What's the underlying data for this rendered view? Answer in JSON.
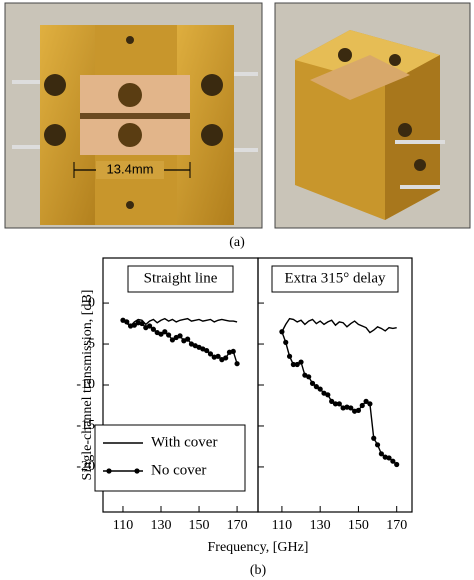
{
  "figure_a": {
    "annotation": "13.4mm",
    "label": "(a)"
  },
  "figure_b": {
    "y_label": "Single-channel transmission, [dB]",
    "x_label": "Frequency, [GHz]",
    "label": "(b)"
  },
  "chart_data": [
    {
      "type": "line",
      "title": "Straight line",
      "x": [
        110,
        112,
        114,
        116,
        118,
        120,
        122,
        124,
        126,
        128,
        130,
        132,
        134,
        136,
        138,
        140,
        142,
        144,
        146,
        148,
        150,
        152,
        154,
        156,
        158,
        160,
        162,
        164,
        166,
        168,
        170
      ],
      "xlim": [
        99.5,
        181
      ],
      "xticks": [
        110,
        130,
        150,
        170
      ],
      "ylim": [
        -25.5,
        5.5
      ],
      "yticks": [
        0,
        -5,
        -10,
        -15,
        -20
      ],
      "legend": "lower left",
      "series": [
        {
          "name": "With cover",
          "color": "#000000",
          "marker": "none",
          "values": [
            -2.0,
            -2.5,
            -2.8,
            -2.3,
            -2.0,
            -2.1,
            -2.6,
            -2.2,
            -2.0,
            -2.4,
            -2.1,
            -1.9,
            -2.2,
            -2.0,
            -2.3,
            -2.1,
            -2.0,
            -1.9,
            -2.2,
            -2.1,
            -2.0,
            -2.2,
            -2.1,
            -2.0,
            -2.3,
            -2.1,
            -2.0,
            -2.1,
            -2.2,
            -2.2,
            -2.3
          ]
        },
        {
          "name": "No cover",
          "color": "#000000",
          "marker": "circle",
          "values": [
            -2.1,
            -2.3,
            -2.8,
            -2.7,
            -2.4,
            -2.5,
            -3.0,
            -2.8,
            -3.2,
            -3.6,
            -3.8,
            -3.5,
            -3.9,
            -4.5,
            -4.2,
            -4.0,
            -4.6,
            -4.4,
            -5.0,
            -5.2,
            -5.4,
            -5.6,
            -5.8,
            -6.2,
            -6.6,
            -6.5,
            -6.9,
            -6.7,
            -6.0,
            -5.9,
            -7.4
          ]
        }
      ]
    },
    {
      "type": "line",
      "title": "Extra 315° delay",
      "x": [
        110,
        112,
        114,
        116,
        118,
        120,
        122,
        124,
        126,
        128,
        130,
        132,
        134,
        136,
        138,
        140,
        142,
        144,
        146,
        148,
        150,
        152,
        154,
        156,
        158,
        160,
        162,
        164,
        166,
        168,
        170
      ],
      "xlim": [
        97.5,
        178
      ],
      "xticks": [
        110,
        130,
        150,
        170
      ],
      "ylim": [
        -25.5,
        5.5
      ],
      "yticks": [
        0,
        -5,
        -10,
        -15,
        -20
      ],
      "series": [
        {
          "color": "#000000",
          "marker": "none",
          "values": [
            -3.5,
            -2.6,
            -1.9,
            -2.0,
            -2.3,
            -2.1,
            -2.6,
            -2.2,
            -2.0,
            -2.5,
            -2.2,
            -2.6,
            -2.3,
            -2.1,
            -2.7,
            -2.3,
            -2.4,
            -2.9,
            -2.5,
            -2.2,
            -2.6,
            -2.8,
            -3.0,
            -3.6,
            -3.3,
            -2.9,
            -3.1,
            -3.4,
            -3.0,
            -3.1,
            -3.0
          ]
        },
        {
          "color": "#000000",
          "marker": "circle",
          "values": [
            -3.5,
            -4.8,
            -6.5,
            -7.5,
            -7.5,
            -7.2,
            -8.8,
            -9.0,
            -9.8,
            -10.2,
            -10.5,
            -11.0,
            -11.2,
            -12.0,
            -12.3,
            -12.3,
            -12.8,
            -12.7,
            -12.8,
            -13.2,
            -13.1,
            -12.5,
            -12.0,
            -12.3,
            -16.5,
            -17.3,
            -18.4,
            -18.8,
            -18.9,
            -19.3,
            -19.7
          ]
        }
      ]
    }
  ]
}
